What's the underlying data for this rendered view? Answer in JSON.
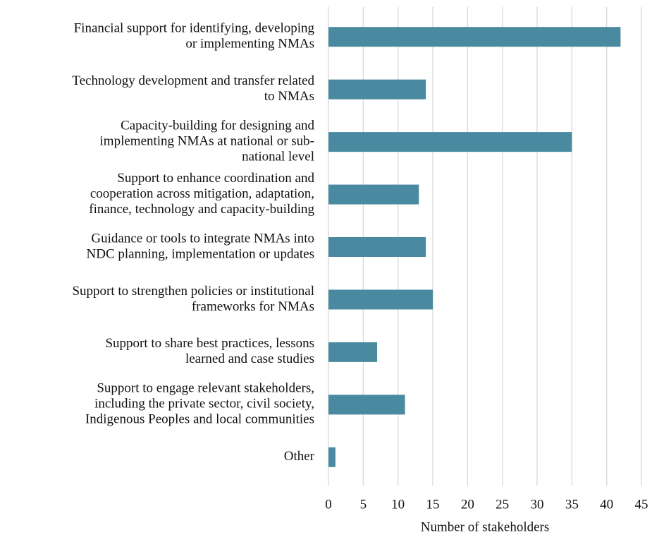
{
  "chart_data": {
    "type": "barh",
    "categories": [
      [
        "Financial support for identifying, developing",
        "or implementing NMAs"
      ],
      [
        "Technology development and transfer related",
        "to NMAs"
      ],
      [
        "Capacity-building for designing and",
        "implementing NMAs at national or sub-",
        "national level"
      ],
      [
        "Support to enhance coordination and",
        "cooperation across mitigation, adaptation,",
        "finance, technology and capacity-building"
      ],
      [
        "Guidance or tools to integrate NMAs into",
        "NDC planning, implementation or updates"
      ],
      [
        "Support to strengthen policies or institutional",
        "frameworks for NMAs"
      ],
      [
        "Support to share best practices, lessons",
        "learned and case studies"
      ],
      [
        "Support to engage relevant stakeholders,",
        "including the private sector, civil society,",
        "Indigenous Peoples and local communities"
      ],
      [
        "Other"
      ]
    ],
    "values": [
      42,
      14,
      35,
      13,
      14,
      15,
      7,
      11,
      1
    ],
    "color": "#4a8aa0",
    "xlabel": "Number of stakeholders",
    "xlim": [
      0,
      45
    ],
    "xticks": [
      0,
      5,
      10,
      15,
      20,
      25,
      30,
      35,
      40,
      45
    ],
    "grid": true
  }
}
